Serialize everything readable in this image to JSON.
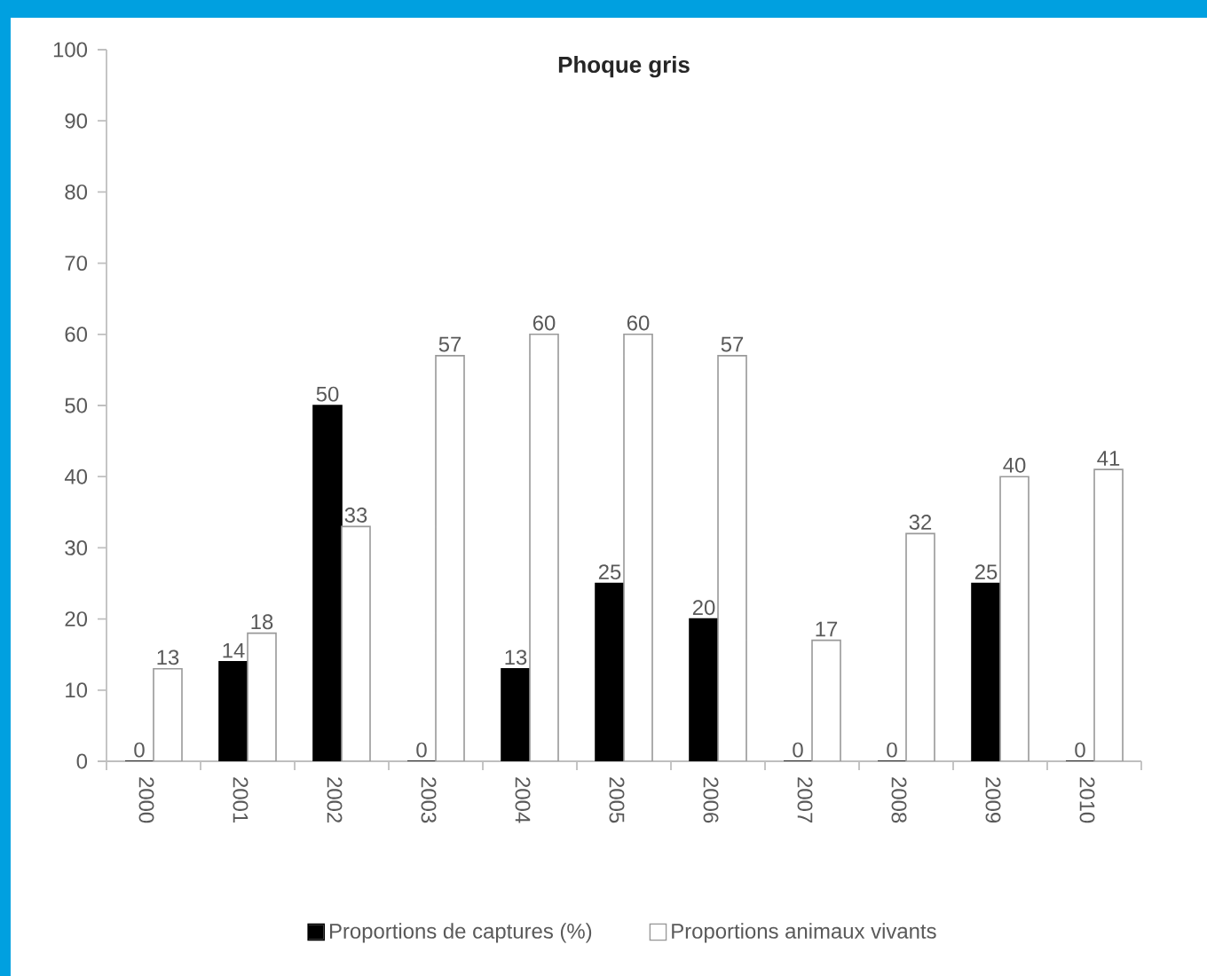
{
  "chart_data": {
    "type": "bar",
    "title": "Phoque gris",
    "categories": [
      "2000",
      "2001",
      "2002",
      "2003",
      "2004",
      "2005",
      "2006",
      "2007",
      "2008",
      "2009",
      "2010"
    ],
    "series": [
      {
        "name": "Proportions de captures (%)",
        "color": "#000000",
        "values": [
          0,
          14,
          50,
          0,
          13,
          25,
          20,
          0,
          0,
          25,
          0
        ]
      },
      {
        "name": "Proportions animaux vivants",
        "color": "#ffffff",
        "values": [
          13,
          18,
          33,
          57,
          60,
          60,
          57,
          17,
          32,
          40,
          41
        ]
      }
    ],
    "ylim": [
      0,
      100
    ],
    "yticks": [
      0,
      10,
      20,
      30,
      40,
      50,
      60,
      70,
      80,
      90,
      100
    ],
    "data_labels": true,
    "legend": "bottom"
  }
}
